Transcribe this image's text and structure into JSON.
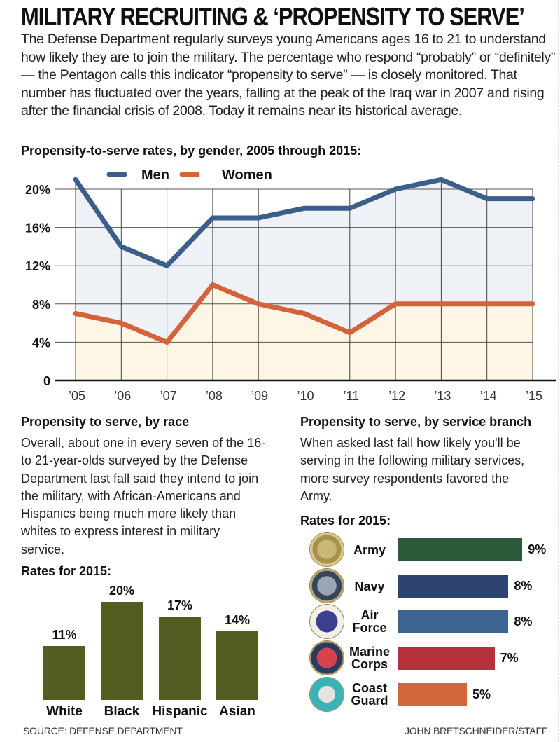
{
  "title": "MILITARY RECRUITING & ‘PROPENSITY TO SERVE’",
  "intro": "The Defense Department regularly surveys young Americans ages 16 to 21 to understand how likely they are to join the military. The percentage who respond “probably” or “definitely” — the Pentagon calls this indicator “propensity to serve” — is closely monitored. That number has fluctuated over the years, falling at the peak of the Iraq war in 2007 and rising after the financial crisis of 2008. Today it remains near its historical average.",
  "race_section": {
    "heading": "Propensity to serve, by race",
    "body": "Overall, about one in every seven of the 16- to 21-year-olds surveyed by the Defense Department last fall said they intend to join the military, with African-Americans and Hispanics being much more likely than whites to express interest in military service.",
    "subheading": "Rates for 2015:"
  },
  "branch_section": {
    "heading": "Propensity to serve, by service branch",
    "body": "When asked last fall how likely you'll be serving in the following military services, more survey respondents favored the Army.",
    "subheading": "Rates for 2015:"
  },
  "footer": {
    "source": "SOURCE: DEFENSE DEPARTMENT",
    "credit": "JOHN BRETSCHNEIDER/STAFF"
  },
  "chart_data": [
    {
      "type": "line",
      "title": "Propensity-to-serve rates, by gender, 2005 through 2015:",
      "x": [
        "’05",
        "’06",
        "’07",
        "’08",
        "’09",
        "’10",
        "’11",
        "’12",
        "’13",
        "’14",
        "’15"
      ],
      "series": [
        {
          "name": "Men",
          "color": "#3b5f8a",
          "values": [
            21,
            14,
            12,
            17,
            17,
            18,
            18,
            20,
            21,
            19,
            19
          ]
        },
        {
          "name": "Women",
          "color": "#d4623a",
          "values": [
            7,
            6,
            4,
            10,
            8,
            7,
            5,
            8,
            8,
            8,
            8
          ]
        }
      ],
      "yticks": [
        "0",
        "4%",
        "8%",
        "12%",
        "16%",
        "20%"
      ],
      "ylim": [
        0,
        20
      ],
      "xlabel": "",
      "ylabel": "",
      "grid": true,
      "legend": "top-center",
      "fills": {
        "men_area": "#eef2f7",
        "women_area": "#fdf6e4"
      }
    },
    {
      "type": "bar",
      "title": "Rates for 2015:",
      "categories": [
        "White",
        "Black",
        "Hispanic",
        "Asian"
      ],
      "values": [
        11,
        20,
        17,
        14
      ],
      "labels": [
        "11%",
        "20%",
        "17%",
        "14%"
      ],
      "color": "#545c22",
      "xlabel": "",
      "ylabel": ""
    },
    {
      "type": "bar",
      "orientation": "horizontal",
      "title": "Rates for 2015:",
      "categories": [
        "Army",
        "Navy",
        "Air Force",
        "Marine Corps",
        "Coast Guard"
      ],
      "category_lines": [
        [
          "Army"
        ],
        [
          "Navy"
        ],
        [
          "Air",
          "Force"
        ],
        [
          "Marine",
          "Corps"
        ],
        [
          "Coast",
          "Guard"
        ]
      ],
      "values": [
        9,
        8,
        8,
        7,
        5
      ],
      "labels": [
        "9%",
        "8%",
        "8%",
        "7%",
        "5%"
      ],
      "colors": [
        "#2b5a38",
        "#2e4371",
        "#3c6592",
        "#b5313c",
        "#d2683a"
      ],
      "icons": [
        "army-seal-icon",
        "navy-seal-icon",
        "air-force-seal-icon",
        "marine-corps-seal-icon",
        "coast-guard-seal-icon"
      ]
    }
  ]
}
